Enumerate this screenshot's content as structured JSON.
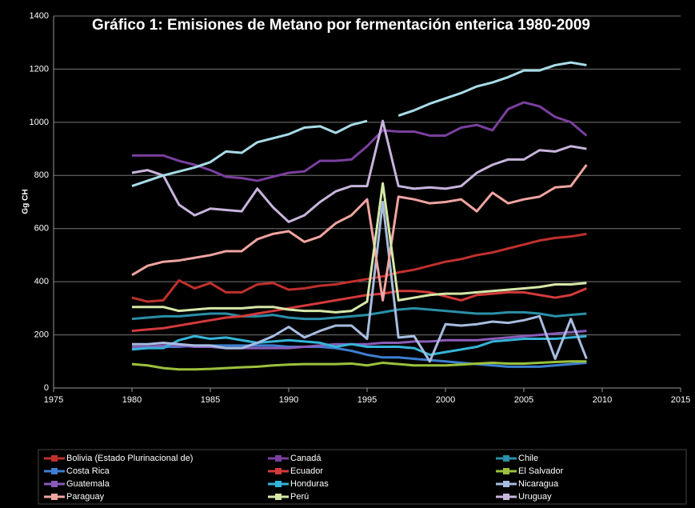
{
  "chart_data": {
    "type": "line",
    "title": "Gráfico 1: Emisiones de Metano por fermentación enterica 1980-2009",
    "y_label": "Gg CH",
    "x": [
      1980,
      1981,
      1982,
      1983,
      1984,
      1985,
      1986,
      1987,
      1988,
      1989,
      1990,
      1991,
      1992,
      1993,
      1994,
      1995,
      1996,
      1997,
      1998,
      1999,
      2000,
      2001,
      2002,
      2003,
      2004,
      2005,
      2006,
      2007,
      2008,
      2009
    ],
    "xlim": [
      1975,
      2015
    ],
    "xticks": [
      1975,
      1980,
      1985,
      1990,
      1995,
      2000,
      2005,
      2010,
      2015
    ],
    "ylim": [
      0,
      1400
    ],
    "yticks": [
      0,
      200,
      400,
      600,
      800,
      1000,
      1200,
      1400
    ],
    "grid": true,
    "series": [
      {
        "name": "Bolivia (Estado Plurinacional de)",
        "color": "#c0302c",
        "values": [
          340,
          325,
          330,
          405,
          375,
          395,
          360,
          360,
          390,
          395,
          370,
          375,
          385,
          390,
          400,
          410,
          420,
          435,
          445,
          460,
          475,
          485,
          500,
          510,
          525,
          540,
          555,
          565,
          570,
          580
        ]
      },
      {
        "name": "Canadá",
        "color": "#7a3f9e",
        "values": [
          875,
          875,
          875,
          855,
          840,
          820,
          795,
          790,
          780,
          795,
          810,
          815,
          855,
          855,
          860,
          910,
          970,
          965,
          965,
          950,
          950,
          980,
          990,
          970,
          1050,
          1075,
          1060,
          1020,
          1000,
          950
        ]
      },
      {
        "name": "Chile",
        "color": "#2a8fa8",
        "values": [
          260,
          265,
          270,
          270,
          275,
          280,
          280,
          270,
          270,
          275,
          265,
          260,
          260,
          265,
          270,
          275,
          285,
          295,
          300,
          295,
          290,
          285,
          280,
          280,
          285,
          285,
          280,
          270,
          275,
          280
        ]
      },
      {
        "name": "Costa Rica",
        "color": "#3d7fd0",
        "values": [
          150,
          150,
          155,
          155,
          160,
          160,
          160,
          160,
          160,
          160,
          155,
          155,
          155,
          150,
          140,
          125,
          115,
          115,
          110,
          105,
          100,
          95,
          90,
          85,
          80,
          80,
          80,
          85,
          90,
          95
        ]
      },
      {
        "name": "Ecuador",
        "color": "#d43a3a",
        "values": [
          215,
          220,
          225,
          235,
          245,
          255,
          265,
          270,
          280,
          290,
          300,
          310,
          320,
          330,
          340,
          350,
          355,
          365,
          365,
          360,
          345,
          330,
          350,
          355,
          360,
          360,
          350,
          340,
          350,
          375
        ]
      },
      {
        "name": "El Salvador",
        "color": "#9bc13c",
        "values": [
          90,
          85,
          75,
          70,
          70,
          72,
          75,
          78,
          80,
          85,
          88,
          90,
          90,
          90,
          92,
          85,
          95,
          90,
          85,
          85,
          85,
          88,
          92,
          95,
          92,
          92,
          95,
          98,
          100,
          100
        ]
      },
      {
        "name": "Guatemala",
        "color": "#8a5cb8",
        "values": [
          155,
          155,
          160,
          160,
          155,
          155,
          150,
          150,
          150,
          150,
          150,
          155,
          160,
          165,
          165,
          165,
          170,
          170,
          175,
          175,
          180,
          180,
          180,
          185,
          190,
          195,
          200,
          205,
          210,
          215
        ]
      },
      {
        "name": "Honduras",
        "color": "#34b4d8",
        "values": [
          145,
          150,
          150,
          180,
          195,
          185,
          190,
          180,
          170,
          175,
          180,
          175,
          170,
          155,
          165,
          155,
          155,
          155,
          150,
          125,
          135,
          145,
          155,
          175,
          180,
          185,
          185,
          185,
          190,
          195
        ]
      },
      {
        "name": "Nicaragua",
        "color": "#a8bce0",
        "values": [
          165,
          165,
          170,
          165,
          160,
          160,
          150,
          150,
          170,
          195,
          230,
          190,
          215,
          235,
          235,
          185,
          700,
          190,
          195,
          100,
          240,
          235,
          240,
          250,
          245,
          255,
          270,
          110,
          260,
          110
        ]
      },
      {
        "name": "Paraguay",
        "color": "#f0a4a0",
        "values": [
          425,
          460,
          475,
          480,
          490,
          500,
          515,
          515,
          560,
          580,
          590,
          550,
          570,
          620,
          650,
          710,
          330,
          720,
          710,
          695,
          700,
          710,
          665,
          735,
          695,
          710,
          720,
          755,
          760,
          840
        ]
      },
      {
        "name": "Perú",
        "color": "#d6e8a8",
        "values": [
          305,
          305,
          305,
          290,
          295,
          300,
          300,
          300,
          305,
          305,
          295,
          290,
          290,
          285,
          290,
          325,
          770,
          330,
          340,
          350,
          355,
          355,
          360,
          365,
          370,
          375,
          380,
          390,
          390,
          395
        ]
      },
      {
        "name": "Uruguay",
        "color": "#c8b4dc",
        "values": [
          810,
          820,
          800,
          690,
          650,
          675,
          670,
          665,
          750,
          680,
          625,
          650,
          700,
          740,
          760,
          760,
          1005,
          760,
          750,
          755,
          750,
          760,
          810,
          840,
          860,
          860,
          895,
          890,
          910,
          900
        ]
      },
      {
        "name": null,
        "color": "#a8dce8",
        "values": [
          760,
          780,
          800,
          815,
          830,
          850,
          890,
          885,
          925,
          940,
          955,
          980,
          985,
          960,
          990,
          1005,
          null,
          1025,
          1045,
          1070,
          1090,
          1110,
          1135,
          1150,
          1170,
          1195,
          1195,
          1215,
          1225,
          1215
        ]
      }
    ]
  }
}
